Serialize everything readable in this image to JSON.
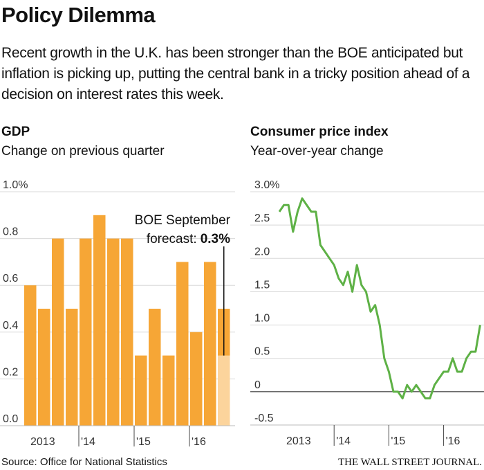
{
  "header": {
    "title": "Policy Dilemma",
    "subtitle": "Recent growth in the U.K. has been stronger than the BOE anticipated but inflation is picking up, putting the central bank in a tricky position ahead of a decision on interest rates this week."
  },
  "chart_data": [
    {
      "type": "bar",
      "title": "GDP",
      "subtitle": "Change on previous quarter",
      "categories": [
        "2013",
        null,
        null,
        null,
        "'14",
        null,
        null,
        null,
        "'15",
        null,
        null,
        null,
        "'16",
        null,
        null
      ],
      "values": [
        0.6,
        0.5,
        0.8,
        0.5,
        0.8,
        0.9,
        0.8,
        0.8,
        0.3,
        0.5,
        0.3,
        0.7,
        0.4,
        0.7,
        0.5
      ],
      "color": "#f6a636",
      "ylim": [
        0,
        1
      ],
      "yticks": [
        {
          "value": 0,
          "label": "0.0"
        },
        0.2,
        0.4,
        0.6,
        0.8,
        {
          "value": 1,
          "label": "1.0%"
        }
      ],
      "grid": true,
      "annotation": [
        "BOE September",
        "forecast:"
      ],
      "forecast": {
        "value": 0.3,
        "value_label": "0.3%",
        "color": "#fcd49c"
      }
    },
    {
      "type": "line",
      "title": "Consumer price index",
      "subtitle": "Year-over-year change",
      "categories": [
        "2013",
        null,
        null,
        null,
        null,
        null,
        null,
        null,
        null,
        null,
        null,
        null,
        "'14",
        null,
        null,
        null,
        null,
        null,
        null,
        null,
        null,
        null,
        null,
        null,
        "'15",
        null,
        null,
        null,
        null,
        null,
        null,
        null,
        null,
        null,
        null,
        null,
        "'16",
        null,
        null,
        null,
        null,
        null,
        null,
        null,
        null
      ],
      "values": [
        2.7,
        2.8,
        2.8,
        2.4,
        2.7,
        2.9,
        2.8,
        2.7,
        2.7,
        2.2,
        2.1,
        2.0,
        1.9,
        1.7,
        1.6,
        1.8,
        1.5,
        1.9,
        1.6,
        1.5,
        1.2,
        1.3,
        1.0,
        0.5,
        0.3,
        0.0,
        0.0,
        -0.1,
        0.1,
        0.0,
        0.1,
        0.0,
        -0.1,
        -0.1,
        0.1,
        0.2,
        0.3,
        0.3,
        0.5,
        0.3,
        0.3,
        0.5,
        0.6,
        0.6,
        1.0
      ],
      "color": "#5eb146",
      "ylim": [
        -0.5,
        3
      ],
      "yticks": [
        -0.5,
        0,
        0.5,
        {
          "value": 1,
          "label": "1.0"
        },
        1.5,
        {
          "value": 2,
          "label": "2.0"
        },
        2.5,
        {
          "value": 3,
          "label": "3.0%"
        }
      ],
      "grid": true
    }
  ],
  "footer": {
    "source": "Source: Office for National Statistics",
    "publisher": "THE WALL STREET JOURNAL."
  }
}
